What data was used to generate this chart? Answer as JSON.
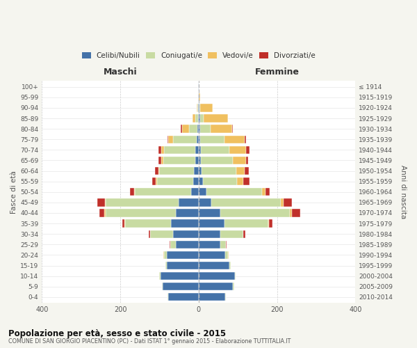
{
  "age_groups": [
    "100+",
    "95-99",
    "90-94",
    "85-89",
    "80-84",
    "75-79",
    "70-74",
    "65-69",
    "60-64",
    "55-59",
    "50-54",
    "45-49",
    "40-44",
    "35-39",
    "30-34",
    "25-29",
    "20-24",
    "15-19",
    "10-14",
    "5-9",
    "0-4"
  ],
  "birth_years": [
    "≤ 1914",
    "1915-1919",
    "1920-1924",
    "1925-1929",
    "1930-1934",
    "1935-1939",
    "1940-1944",
    "1945-1949",
    "1950-1954",
    "1955-1959",
    "1960-1964",
    "1965-1969",
    "1970-1974",
    "1975-1979",
    "1980-1984",
    "1985-1989",
    "1990-1994",
    "1995-1999",
    "2000-2004",
    "2005-2009",
    "2010-2014"
  ],
  "male": {
    "celibi": [
      1,
      1,
      1,
      2,
      3,
      5,
      8,
      8,
      12,
      14,
      20,
      52,
      58,
      70,
      65,
      58,
      82,
      82,
      98,
      92,
      78
    ],
    "coniugati": [
      0,
      0,
      2,
      6,
      22,
      60,
      80,
      82,
      88,
      92,
      142,
      185,
      180,
      118,
      58,
      14,
      7,
      3,
      2,
      2,
      1
    ],
    "vedovi": [
      0,
      0,
      2,
      8,
      18,
      12,
      8,
      5,
      3,
      3,
      3,
      3,
      3,
      1,
      1,
      1,
      1,
      0,
      0,
      0,
      0
    ],
    "divorziati": [
      0,
      0,
      0,
      0,
      2,
      3,
      6,
      7,
      8,
      10,
      10,
      18,
      12,
      5,
      3,
      2,
      1,
      0,
      0,
      0,
      0
    ]
  },
  "female": {
    "nubili": [
      1,
      1,
      2,
      3,
      3,
      4,
      5,
      6,
      8,
      10,
      20,
      32,
      55,
      65,
      55,
      55,
      68,
      78,
      92,
      88,
      68
    ],
    "coniugate": [
      0,
      0,
      2,
      10,
      28,
      62,
      74,
      82,
      88,
      88,
      142,
      178,
      178,
      112,
      58,
      14,
      7,
      3,
      3,
      2,
      1
    ],
    "vedove": [
      0,
      3,
      32,
      62,
      55,
      52,
      42,
      32,
      22,
      16,
      9,
      6,
      4,
      2,
      1,
      1,
      1,
      0,
      0,
      0,
      0
    ],
    "divorziate": [
      0,
      0,
      0,
      0,
      2,
      3,
      9,
      6,
      10,
      16,
      10,
      22,
      22,
      9,
      5,
      2,
      1,
      0,
      0,
      0,
      0
    ]
  },
  "colors": {
    "celibi": "#4472a8",
    "coniugati": "#c8dba2",
    "vedovi": "#f0c060",
    "divorziati": "#c0302a"
  },
  "xlim": 400,
  "title": "Popolazione per età, sesso e stato civile - 2015",
  "subtitle": "COMUNE DI SAN GIORGIO PIACENTINO (PC) - Dati ISTAT 1° gennaio 2015 - Elaborazione TUTTITALIA.IT",
  "xlabel_left": "Maschi",
  "xlabel_right": "Femmine",
  "ylabel_left": "Fasce di età",
  "ylabel_right": "Anni di nascita",
  "bg_color": "#f5f5ef",
  "plot_bg_color": "#ffffff"
}
